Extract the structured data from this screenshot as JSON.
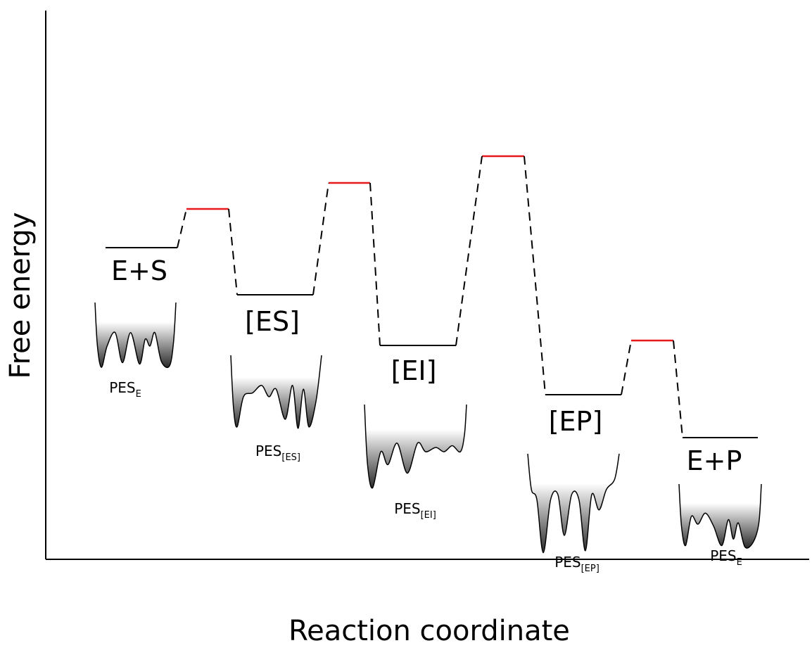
{
  "axes": {
    "x_label": "Reaction coordinate",
    "y_label": "Free energy"
  },
  "states": [
    {
      "label": "E+S",
      "pes": "PES",
      "pes_sub": "E"
    },
    {
      "label": "[ES]",
      "pes": "PES",
      "pes_sub": "[ES]"
    },
    {
      "label": "[EI]",
      "pes": "PES",
      "pes_sub": "[EI]"
    },
    {
      "label": "[EP]",
      "pes": "PES",
      "pes_sub": "[EP]"
    },
    {
      "label": "E+P",
      "pes": "PES",
      "pes_sub": "E"
    }
  ]
}
